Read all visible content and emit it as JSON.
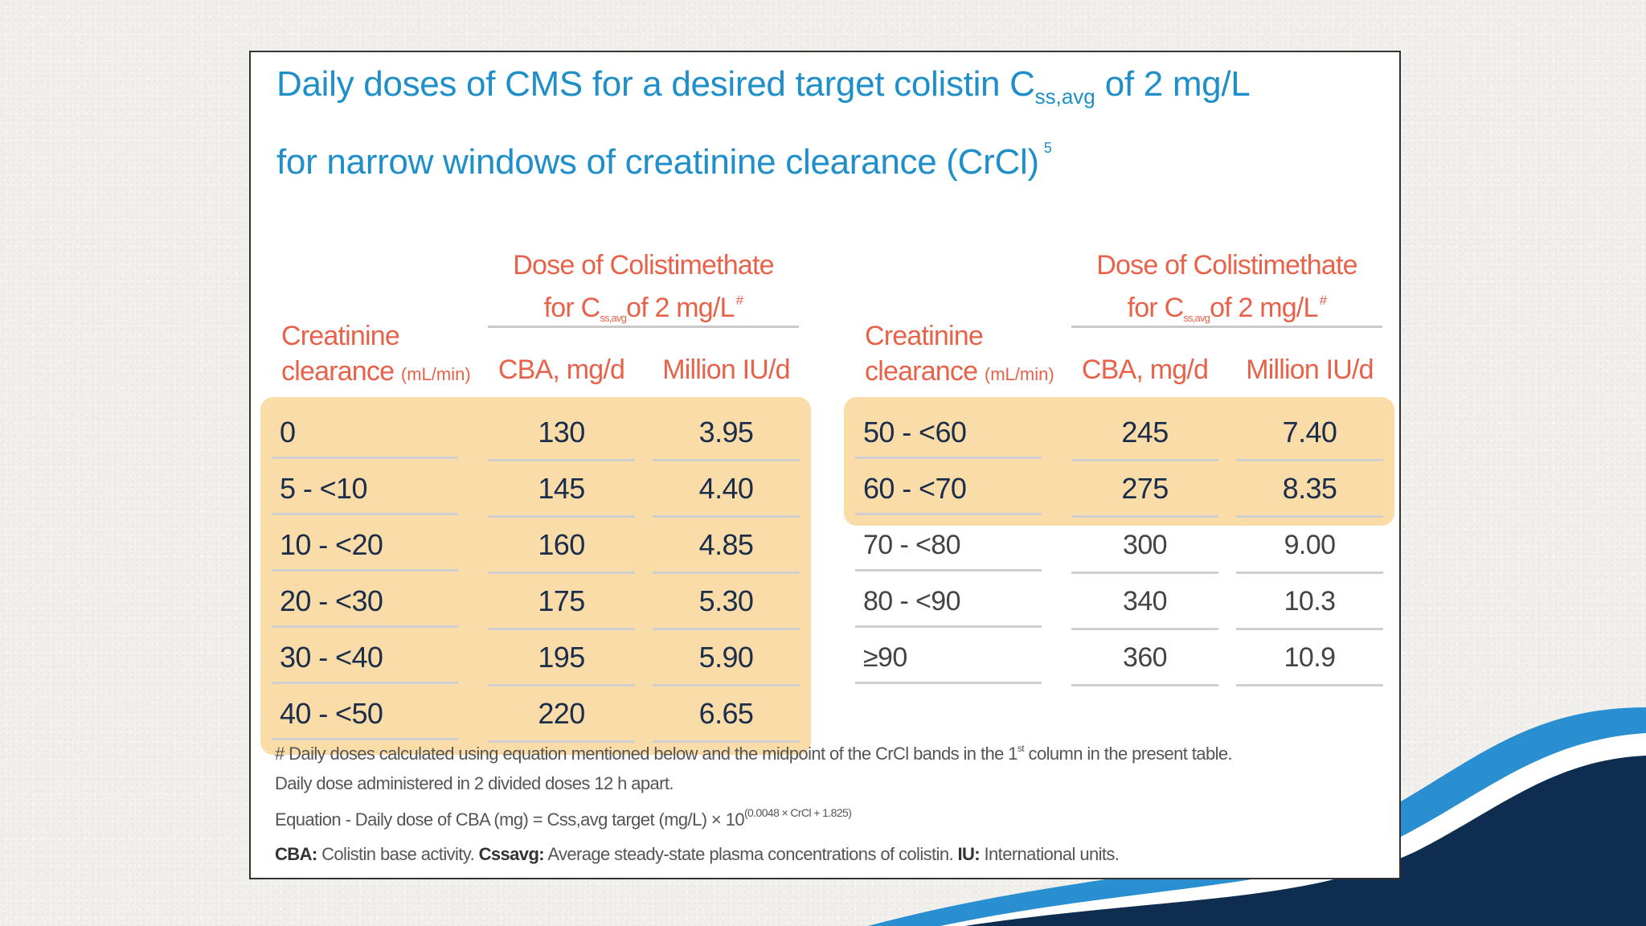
{
  "colors": {
    "title": "#1f8fc9",
    "header": "#e8624a",
    "highlight": "#f9dca8",
    "bold_text": "#1b2d4a",
    "wave_light": "#2a8fd0",
    "wave_dark": "#0f2e4f"
  },
  "title": {
    "line1_pre": "Daily doses of CMS for a desired target colistin C",
    "line1_sub": "ss,avg",
    "line1_post": " of 2 mg/L",
    "line2": "for narrow windows of creatinine clearance (CrCl)",
    "ref": "5"
  },
  "headers": {
    "dose_line1": "Dose of Colistimethate",
    "dose_line2_pre": "for C",
    "dose_line2_sub": "ss,avg",
    "dose_line2_post": "of 2 mg/L",
    "dose_hash": "#",
    "crcl_line1": "Creatinine",
    "crcl_line2": "clearance",
    "crcl_unit": "(mL/min)",
    "cba": "CBA, mg/d",
    "miu": "Million IU/d"
  },
  "left_table": {
    "rows": [
      {
        "crcl": "0",
        "cba": "130",
        "miu": "3.95"
      },
      {
        "crcl": "5 - <10",
        "cba": "145",
        "miu": "4.40"
      },
      {
        "crcl": "10 - <20",
        "cba": "160",
        "miu": "4.85"
      },
      {
        "crcl": "20 - <30",
        "cba": "175",
        "miu": "5.30"
      },
      {
        "crcl": "30 - <40",
        "cba": "195",
        "miu": "5.90"
      },
      {
        "crcl": "40 - <50",
        "cba": "220",
        "miu": "6.65"
      }
    ]
  },
  "right_table": {
    "rows": [
      {
        "crcl": "50 - <60",
        "cba": "245",
        "miu": "7.40"
      },
      {
        "crcl": "60 - <70",
        "cba": "275",
        "miu": "8.35"
      },
      {
        "crcl": "70 - <80",
        "cba": "300",
        "miu": "9.00"
      },
      {
        "crcl": "80 - <90",
        "cba": "340",
        "miu": "10.3"
      },
      {
        "crcl": "≥90",
        "cba": "360",
        "miu": "10.9"
      }
    ]
  },
  "notes": {
    "line1_pre": "# Daily doses calculated using equation mentioned below and the midpoint of the CrCl bands in the 1",
    "line1_sup": "st",
    "line1_post": " column in the present table.",
    "line2": "Daily dose administered in 2 divided doses 12 h apart.",
    "line3_pre": "Equation - Daily dose of CBA (mg) = Css,avg target (mg/L) × 10",
    "line3_sup": "(0.0048 × CrCl + 1.825)",
    "def_cba_term": "CBA:",
    "def_cba_text": " Colistin base activity. ",
    "def_css_term": "Cssavg:",
    "def_css_text": " Average steady-state plasma concentrations of colistin. ",
    "def_iu_term": "IU:",
    "def_iu_text": " International units."
  }
}
